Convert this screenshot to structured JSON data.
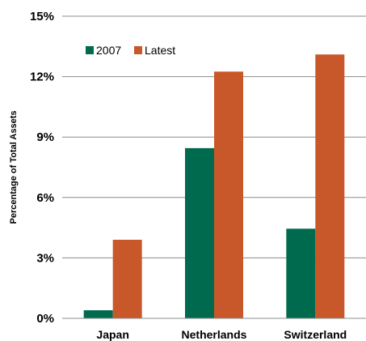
{
  "chart_data": {
    "type": "bar",
    "title": "",
    "xlabel": "",
    "ylabel": "Percentage of Total Assets",
    "categories": [
      "Japan",
      "Netherlands",
      "Switzerland"
    ],
    "series": [
      {
        "name": "2007",
        "color": "#006A4E",
        "values": [
          0.4,
          8.45,
          4.45
        ]
      },
      {
        "name": "Latest",
        "color": "#C8582A",
        "values": [
          3.9,
          12.25,
          13.1
        ]
      }
    ],
    "ylim": [
      0,
      15
    ],
    "yticks": [
      0,
      3,
      6,
      9,
      12,
      15
    ],
    "ytick_labels": [
      "0%",
      "3%",
      "6%",
      "9%",
      "12%",
      "15%"
    ],
    "grid": true,
    "legend": "top-left"
  }
}
